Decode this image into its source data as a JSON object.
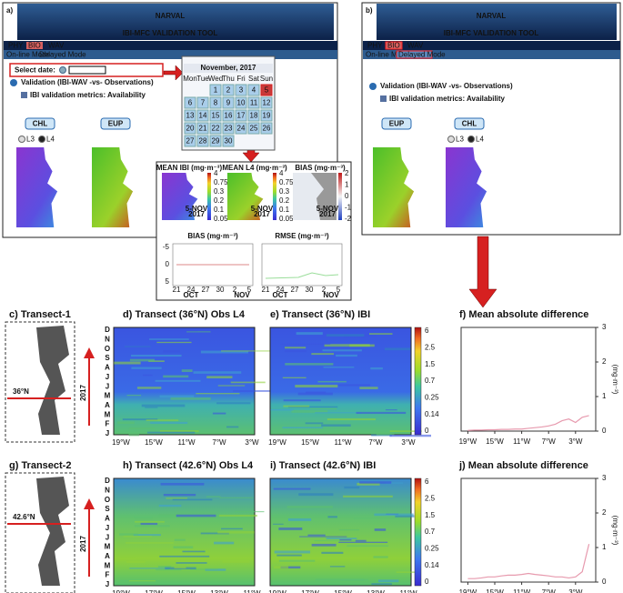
{
  "screens": [
    {
      "label": "a)",
      "title": "NARVAL",
      "subtitle": "IBI-MFC VALIDATION TOOL",
      "tabs": [
        "PHY",
        "BIO",
        "WAV"
      ],
      "modes": [
        "On-line Mode",
        "Delayed Mode"
      ],
      "select_date": "Select date:",
      "validation": "Validation (IBI-WAV -vs- Observations)",
      "metrics": "IBI validation metrics: Availability",
      "buttons": [
        "CHL",
        "EUP"
      ],
      "radio": [
        "L3",
        "L4"
      ]
    },
    {
      "label": "b)",
      "title": "NARVAL",
      "subtitle": "IBI-MFC VALIDATION TOOL",
      "tabs": [
        "PHY",
        "BIO",
        "WAV"
      ],
      "modes": [
        "On-line Mode",
        "Delayed Mode"
      ],
      "validation": "Validation (IBI-WAV -vs- Observations)",
      "metrics": "IBI validation metrics: Availability",
      "buttons": [
        "EUP",
        "CHL"
      ],
      "radio": [
        "L3",
        "L4"
      ]
    }
  ],
  "calendar": {
    "month": "November, 2017",
    "weekdays": [
      "Mon",
      "Tue",
      "Wed",
      "Thu",
      "Fri",
      "Sat",
      "Sun"
    ],
    "weeks": [
      [
        null,
        null,
        1,
        2,
        3,
        4,
        5
      ],
      [
        6,
        7,
        8,
        9,
        10,
        11,
        12
      ],
      [
        13,
        14,
        15,
        16,
        17,
        18,
        19
      ],
      [
        20,
        21,
        22,
        23,
        24,
        25,
        26
      ],
      [
        27,
        28,
        29,
        30,
        null,
        null,
        null
      ]
    ]
  },
  "popup": {
    "maps": [
      {
        "title": "MEAN IBI (mg·m⁻³)",
        "scale": [
          "4",
          "0.75",
          "0.3",
          "0.2",
          "0.1",
          "0.05"
        ],
        "date": [
          "5-NOV",
          "2017"
        ]
      },
      {
        "title": "MEAN L4 (mg·m⁻³)",
        "scale": [
          "4",
          "0.75",
          "0.3",
          "0.2",
          "0.1",
          "0.05"
        ],
        "date": [
          "5-NOV",
          "2017"
        ]
      },
      {
        "title": "BIAS (mg·m⁻³)",
        "scale": [
          "2",
          "1",
          "0",
          "-1",
          "-2"
        ],
        "date": [
          "5-NOV",
          "2017"
        ]
      }
    ],
    "bias": {
      "title": "BIAS (mg·m⁻³)",
      "yticks": [
        "-5",
        "0",
        "5"
      ]
    },
    "rmse": {
      "title": "RMSE (mg·m⁻³)"
    },
    "days": [
      "21",
      "24",
      "27",
      "30",
      "2",
      "5"
    ],
    "months": [
      "OCT",
      "NOV"
    ]
  },
  "transects": [
    {
      "label": "c) Transect-1",
      "latitude": "36°N",
      "year": "2017",
      "months": [
        "D",
        "N",
        "O",
        "S",
        "A",
        "J",
        "J",
        "M",
        "A",
        "M",
        "F",
        "J"
      ],
      "obs_title": "d) Transect (36°N) Obs L4",
      "ibi_title": "e) Transect (36°N) IBI",
      "map_xticks": [
        "19°W",
        "15°W",
        "11°W",
        "7°W",
        "3°W"
      ],
      "colorbar": [
        "6",
        "2.5",
        "1.5",
        "0.7",
        "0.25",
        "0.14",
        "0"
      ],
      "difference": {
        "type": "line",
        "title": "f) Mean absolute difference",
        "ylabel": "(mg·m⁻³)",
        "color": "#e79aae",
        "xlim": [
          -20,
          0
        ],
        "xticks": [
          {
            "value": -19,
            "label": "19°W"
          },
          {
            "value": -15,
            "label": "15°W"
          },
          {
            "value": -11,
            "label": "11°W"
          },
          {
            "value": -7,
            "label": "7°W"
          },
          {
            "value": -3,
            "label": "3°W"
          }
        ],
        "ylim": [
          0,
          3
        ],
        "yticks": [
          0,
          1,
          2,
          3
        ],
        "x": [
          -19,
          -18,
          -17,
          -16,
          -15,
          -14,
          -13,
          -12,
          -11,
          -10,
          -9,
          -8,
          -7,
          -6,
          -5,
          -4,
          -3,
          -2,
          -1
        ],
        "values": [
          0.02,
          0.03,
          0.03,
          0.04,
          0.04,
          0.05,
          0.05,
          0.06,
          0.06,
          0.08,
          0.1,
          0.12,
          0.15,
          0.2,
          0.3,
          0.35,
          0.25,
          0.4,
          0.45
        ]
      }
    },
    {
      "label": "g) Transect-2",
      "latitude": "42.6°N",
      "year": "2017",
      "months": [
        "D",
        "N",
        "O",
        "S",
        "A",
        "J",
        "J",
        "M",
        "A",
        "M",
        "F",
        "J"
      ],
      "obs_title": "h) Transect (42.6°N) Obs L4",
      "ibi_title": "i) Transect (42.6°N) IBI",
      "map_xticks": [
        "19°W",
        "17°W",
        "15°W",
        "13°W",
        "11°W"
      ],
      "colorbar": [
        "6",
        "2.5",
        "1.5",
        "0.7",
        "0.25",
        "0.14",
        "0"
      ],
      "difference": {
        "type": "line",
        "title": "j) Mean absolute difference",
        "ylabel": "(mg·m⁻³)",
        "color": "#e79aae",
        "xlim": [
          -20,
          0
        ],
        "xticks": [
          {
            "value": -19,
            "label": "19°W"
          },
          {
            "value": -15,
            "label": "15°W"
          },
          {
            "value": -11,
            "label": "11°W"
          },
          {
            "value": -7,
            "label": "7°W"
          },
          {
            "value": -3,
            "label": "3°W"
          }
        ],
        "ylim": [
          0,
          3
        ],
        "yticks": [
          0,
          1,
          2,
          3
        ],
        "x": [
          -19,
          -18,
          -17,
          -16,
          -15,
          -14,
          -13,
          -12,
          -11,
          -10,
          -9,
          -8,
          -7,
          -6,
          -5,
          -4,
          -3,
          -2,
          -1
        ],
        "values": [
          0.1,
          0.1,
          0.12,
          0.15,
          0.15,
          0.18,
          0.2,
          0.2,
          0.22,
          0.25,
          0.22,
          0.2,
          0.18,
          0.15,
          0.15,
          0.12,
          0.15,
          0.3,
          1.1
        ]
      }
    }
  ]
}
